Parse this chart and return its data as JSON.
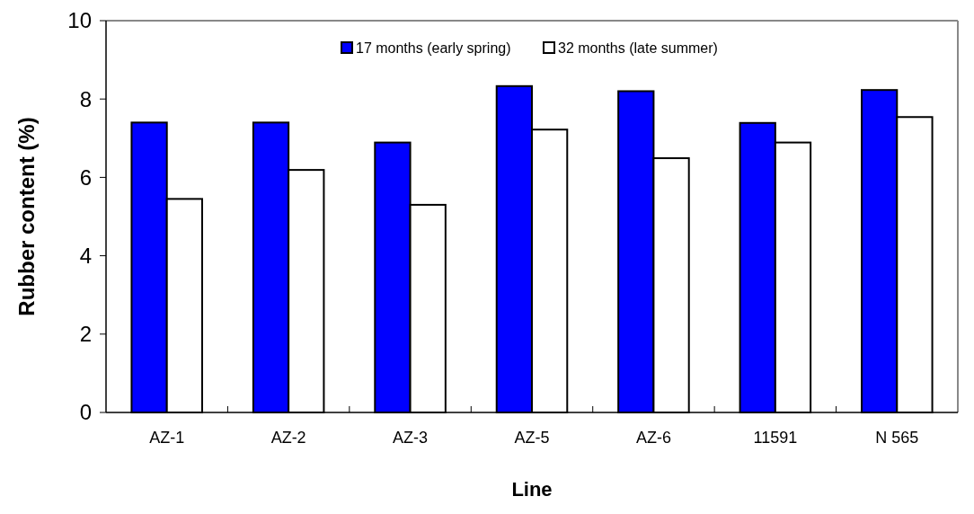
{
  "chart_data": {
    "type": "bar",
    "xlabel": "Line",
    "ylabel": "Rubber content (%)",
    "categories": [
      "AZ-1",
      "AZ-2",
      "AZ-3",
      "AZ-5",
      "AZ-6",
      "11591",
      "N 565"
    ],
    "series": [
      {
        "name": "17 months (early spring)",
        "color": "#0000ff",
        "values": [
          7.4,
          7.4,
          6.89,
          8.33,
          8.2,
          7.39,
          8.23
        ]
      },
      {
        "name": "32 months (late summer)",
        "color": "#ffffff",
        "values": [
          5.45,
          6.19,
          5.3,
          7.22,
          6.49,
          6.89,
          7.54
        ]
      }
    ],
    "ylim": [
      0,
      10
    ],
    "yticks": [
      0,
      2,
      4,
      6,
      8,
      10
    ],
    "grid": false,
    "legend": "top"
  }
}
